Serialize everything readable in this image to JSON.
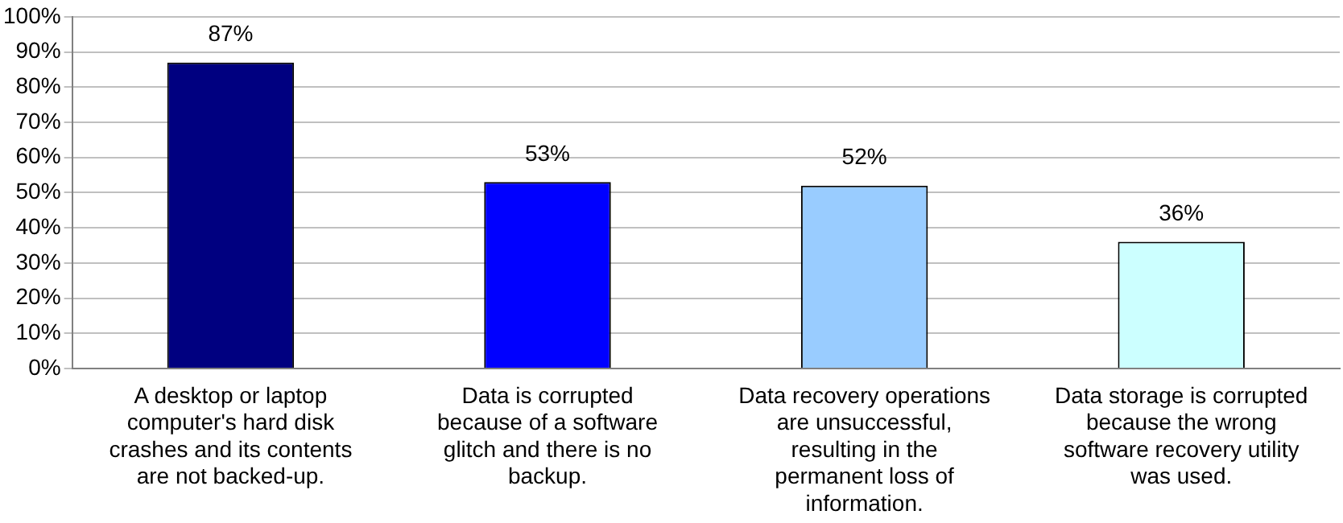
{
  "chart_data": {
    "type": "bar",
    "categories": [
      "A desktop or laptop computer's hard disk crashes and its contents are not backed-up.",
      "Data is corrupted because of a software glitch and there is no backup.",
      "Data recovery operations are unsuccessful, resulting in the permanent loss of information.",
      "Data storage is corrupted because the wrong software recovery utility was used."
    ],
    "values": [
      87,
      53,
      52,
      36
    ],
    "colors": [
      "#000080",
      "#0000ff",
      "#99ccff",
      "#ccffff"
    ],
    "value_labels": [
      "87%",
      "53%",
      "52%",
      "36%"
    ],
    "ylim": [
      0,
      100
    ],
    "yticks": [
      {
        "value": 0,
        "label": "0%"
      },
      {
        "value": 10,
        "label": "10%"
      },
      {
        "value": 20,
        "label": "20%"
      },
      {
        "value": 30,
        "label": "30%"
      },
      {
        "value": 40,
        "label": "40%"
      },
      {
        "value": 50,
        "label": "50%"
      },
      {
        "value": 60,
        "label": "60%"
      },
      {
        "value": 70,
        "label": "70%"
      },
      {
        "value": 80,
        "label": "80%"
      },
      {
        "value": 90,
        "label": "90%"
      },
      {
        "value": 100,
        "label": "100%"
      }
    ],
    "grid": "y",
    "legend": false
  }
}
